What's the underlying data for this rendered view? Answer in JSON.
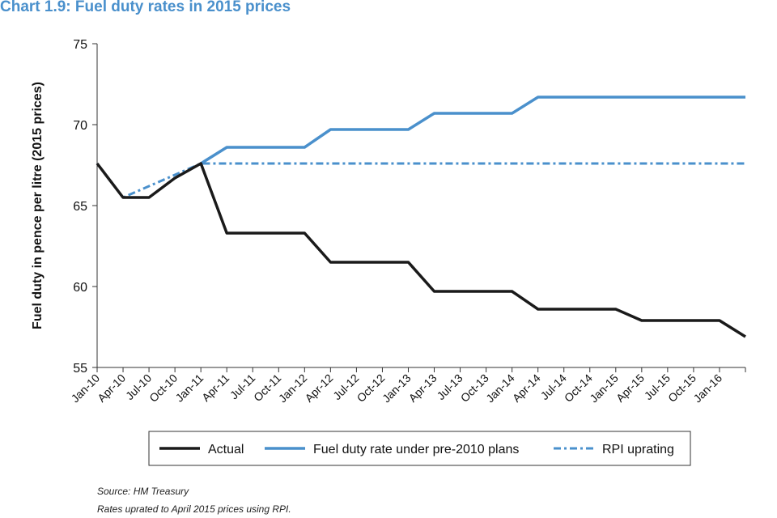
{
  "chart_data": {
    "type": "line",
    "title": "Chart 1.9: Fuel duty rates in 2015 prices",
    "ylabel": "Fuel duty in pence per litre (2015 prices)",
    "xlabel": "",
    "ylim": [
      55,
      75
    ],
    "yticks": [
      55,
      60,
      65,
      70,
      75
    ],
    "xtick_labels": [
      "Jan-10",
      "Apr-10",
      "Jul-10",
      "Oct-10",
      "Jan-11",
      "Apr-11",
      "Jul-11",
      "Oct-11",
      "Jan-12",
      "Apr-12",
      "Jul-12",
      "Oct-12",
      "Jan-13",
      "Apr-13",
      "Jul-13",
      "Oct-13",
      "Jan-14",
      "Apr-14",
      "Jul-14",
      "Oct-14",
      "Jan-15",
      "Apr-15",
      "Jul-15",
      "Oct-15",
      "Jan-16"
    ],
    "x_end": "Apr-16",
    "grid": false,
    "legend_position": "bottom",
    "series": [
      {
        "name": "Actual",
        "color": "#1a1a1a",
        "style": "solid",
        "points": [
          [
            "Jan-10",
            67.6
          ],
          [
            "Apr-10",
            65.5
          ],
          [
            "Jul-10",
            65.5
          ],
          [
            "Oct-10",
            66.7
          ],
          [
            "Jan-11",
            67.6
          ],
          [
            "Apr-11",
            63.3
          ],
          [
            "Jul-11",
            63.3
          ],
          [
            "Oct-11",
            63.3
          ],
          [
            "Jan-12",
            63.3
          ],
          [
            "Apr-12",
            61.5
          ],
          [
            "Jul-12",
            61.5
          ],
          [
            "Oct-12",
            61.5
          ],
          [
            "Jan-13",
            61.5
          ],
          [
            "Apr-13",
            59.7
          ],
          [
            "Jul-13",
            59.7
          ],
          [
            "Oct-13",
            59.7
          ],
          [
            "Jan-14",
            59.7
          ],
          [
            "Apr-14",
            58.6
          ],
          [
            "Jul-14",
            58.6
          ],
          [
            "Oct-14",
            58.6
          ],
          [
            "Jan-15",
            58.6
          ],
          [
            "Apr-15",
            57.9
          ],
          [
            "Jul-15",
            57.9
          ],
          [
            "Oct-15",
            57.9
          ],
          [
            "Jan-16",
            57.9
          ],
          [
            "Apr-16",
            56.9
          ]
        ]
      },
      {
        "name": "Fuel duty rate under pre-2010 plans",
        "color": "#4a90cc",
        "style": "solid",
        "points": [
          [
            "Jan-11",
            67.6
          ],
          [
            "Apr-11",
            68.6
          ],
          [
            "Jul-11",
            68.6
          ],
          [
            "Oct-11",
            68.6
          ],
          [
            "Jan-12",
            68.6
          ],
          [
            "Apr-12",
            69.7
          ],
          [
            "Jul-12",
            69.7
          ],
          [
            "Oct-12",
            69.7
          ],
          [
            "Jan-13",
            69.7
          ],
          [
            "Apr-13",
            70.7
          ],
          [
            "Jul-13",
            70.7
          ],
          [
            "Oct-13",
            70.7
          ],
          [
            "Jan-14",
            70.7
          ],
          [
            "Apr-14",
            71.7
          ],
          [
            "Jul-14",
            71.7
          ],
          [
            "Oct-14",
            71.7
          ],
          [
            "Jan-15",
            71.7
          ],
          [
            "Apr-15",
            71.7
          ],
          [
            "Jul-15",
            71.7
          ],
          [
            "Oct-15",
            71.7
          ],
          [
            "Jan-16",
            71.7
          ],
          [
            "Apr-16",
            71.7
          ]
        ]
      },
      {
        "name": "RPI uprating",
        "color": "#4a90cc",
        "style": "dashed",
        "points": [
          [
            "Jan-10",
            67.6
          ],
          [
            "Apr-10",
            65.5
          ],
          [
            "Jan-11",
            67.6
          ],
          [
            "Apr-16",
            67.6
          ]
        ]
      }
    ]
  },
  "footer": {
    "source": "Source: HM Treasury",
    "note": "Rates uprated to April 2015 prices using RPI."
  }
}
